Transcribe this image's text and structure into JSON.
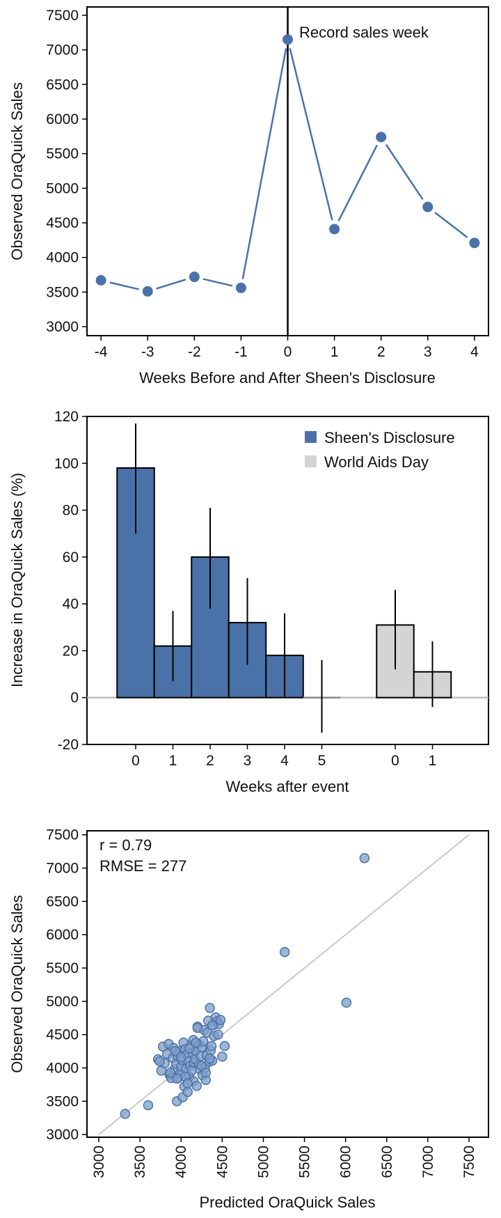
{
  "colors": {
    "blue": "#4a72a8",
    "blue_marker": "#4a72a8",
    "grey_bar": "#d4d4d4",
    "scatter_fill": "#7e9ec8",
    "scatter_stroke": "#4a72a8",
    "fit_line": "#c8c8c8",
    "zero_line": "#bdbdbd"
  },
  "chart_data": [
    {
      "type": "line",
      "x": [
        -4,
        -3,
        -2,
        -1,
        0,
        1,
        2,
        3,
        4
      ],
      "y": [
        3670,
        3510,
        3720,
        3560,
        7150,
        4410,
        5740,
        4730,
        4210
      ],
      "xlim": [
        -4.3,
        4.3
      ],
      "ylim": [
        2870,
        7620
      ],
      "xticks": [
        "-4",
        "-3",
        "-2",
        "-1",
        "0",
        "1",
        "2",
        "3",
        "4"
      ],
      "yticks": [
        "3000",
        "3500",
        "4000",
        "4500",
        "5000",
        "5500",
        "6000",
        "6500",
        "7000",
        "7500"
      ],
      "xlabel": "Weeks Before and After Sheen's Disclosure",
      "ylabel": "Observed OraQuick Sales",
      "vline_x": 0,
      "annotation": "Record sales week"
    },
    {
      "type": "bar",
      "series": [
        {
          "name": "Sheen's Disclosure",
          "categories": [
            "0",
            "1",
            "2",
            "3",
            "4",
            "5"
          ],
          "values": [
            98,
            22,
            60,
            32,
            18,
            0
          ],
          "err_low": [
            70,
            7,
            38,
            14,
            0,
            -15
          ],
          "err_high": [
            117,
            37,
            81,
            51,
            36,
            16
          ]
        },
        {
          "name": "World Aids Day",
          "categories": [
            "0",
            "1"
          ],
          "values": [
            31,
            11
          ],
          "err_low": [
            12,
            -4
          ],
          "err_high": [
            46,
            24
          ]
        }
      ],
      "ylim": [
        -20,
        120
      ],
      "yticks": [
        "-20",
        "0",
        "20",
        "40",
        "60",
        "80",
        "100",
        "120"
      ],
      "xlabel": "Weeks after event",
      "ylabel": "Increase in OraQuick Sales (%)",
      "legend": [
        "Sheen's Disclosure",
        "World Aids Day"
      ]
    },
    {
      "type": "scatter",
      "x": [
        3320,
        3600,
        5260,
        6230,
        6010,
        3720,
        3760,
        3780,
        3800,
        3830,
        3850,
        3860,
        3880,
        3900,
        3910,
        3920,
        3940,
        3950,
        3960,
        3970,
        3980,
        3990,
        4000,
        4010,
        4020,
        4030,
        4040,
        4050,
        4060,
        4070,
        4080,
        4090,
        4100,
        4110,
        4120,
        4130,
        4140,
        4150,
        4160,
        4170,
        4180,
        4190,
        4200,
        4210,
        4220,
        4230,
        4240,
        4250,
        4260,
        4270,
        4280,
        4290,
        4300,
        4310,
        4320,
        4330,
        4340,
        4350,
        4360,
        4370,
        4380,
        4390,
        4400,
        4420,
        4440,
        4460,
        4480,
        4500,
        4530,
        3740,
        3870,
        3930,
        4050,
        4150,
        4250,
        4350,
        4450,
        4100,
        4200,
        4000,
        3950,
        4300,
        4180,
        4080,
        4380
      ],
      "y": [
        3310,
        3440,
        5740,
        7150,
        4980,
        4130,
        3960,
        4320,
        4070,
        4210,
        4360,
        3900,
        3850,
        4150,
        4300,
        3980,
        4060,
        3500,
        4180,
        3860,
        4250,
        3920,
        4020,
        4120,
        3560,
        4380,
        3720,
        4280,
        3990,
        4200,
        3640,
        4100,
        3870,
        4030,
        4340,
        3960,
        4220,
        3800,
        4080,
        4130,
        4260,
        3730,
        4620,
        4360,
        4050,
        3980,
        4180,
        4310,
        3890,
        4400,
        4570,
        4000,
        3820,
        4190,
        4530,
        4710,
        4090,
        4900,
        4260,
        4330,
        4110,
        4640,
        4480,
        4760,
        4700,
        4660,
        4720,
        4170,
        4330,
        4100,
        3930,
        4250,
        3870,
        4420,
        4030,
        4140,
        4500,
        4290,
        4600,
        4160,
        3840,
        3930,
        4380,
        3770,
        4640
      ],
      "xlim": [
        3000,
        7500
      ],
      "ylim": [
        2960,
        7560
      ],
      "fit_line": [
        [
          3000,
          3000
        ],
        [
          7500,
          7500
        ]
      ],
      "xticks": [
        "3000",
        "3500",
        "4000",
        "4500",
        "5000",
        "5500",
        "6000",
        "6500",
        "7000",
        "7500"
      ],
      "yticks": [
        "3000",
        "3500",
        "4000",
        "4500",
        "5000",
        "5500",
        "6000",
        "6500",
        "7000",
        "7500"
      ],
      "xlabel": "Predicted OraQuick Sales",
      "ylabel": "Observed OraQuick Sales",
      "stats": [
        "r = 0.79",
        "RMSE = 277"
      ]
    }
  ]
}
